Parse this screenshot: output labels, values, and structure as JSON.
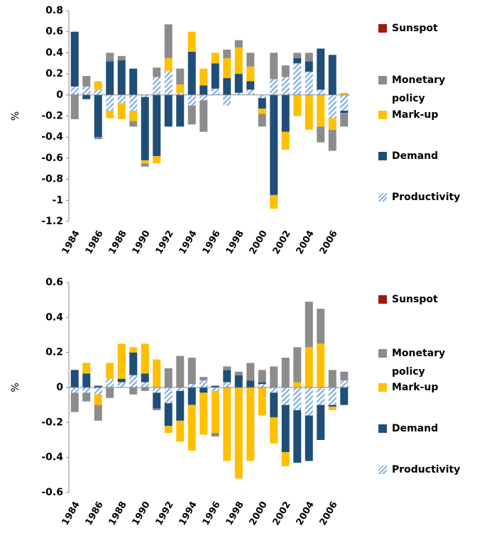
{
  "chart_data": [
    {
      "type": "bar",
      "stacked": true,
      "ylabel": "%",
      "legend": "right",
      "categories": [
        "1984",
        null,
        "1986",
        null,
        "1988",
        null,
        "1990",
        null,
        "1992",
        null,
        "1994",
        null,
        "1996",
        null,
        "1998",
        null,
        "2000",
        null,
        "2002",
        null,
        "2004",
        null,
        "2006",
        null
      ],
      "ylim": [
        -1.2,
        0.8
      ],
      "yticks": [
        0.8,
        0.6,
        0.4,
        0.2,
        0,
        -0.2,
        -0.4,
        -0.6,
        -0.8,
        -1,
        -1.2
      ],
      "series": [
        {
          "name": "Productivity",
          "color": "#8db4e2",
          "hatch": true,
          "values": [
            0.08,
            0.08,
            0.05,
            -0.15,
            -0.08,
            -0.15,
            -0.02,
            0.17,
            0.23,
            0.02,
            -0.1,
            -0.05,
            0.06,
            -0.1,
            0.02,
            0.05,
            -0.03,
            0.15,
            0.17,
            0.3,
            0.22,
            0.05,
            -0.22,
            -0.15
          ]
        },
        {
          "name": "Demand",
          "color": "#1f4e79",
          "values": [
            0.52,
            -0.04,
            -0.4,
            0.32,
            0.33,
            0.25,
            -0.6,
            -0.58,
            -0.3,
            -0.3,
            0.41,
            0.09,
            0.24,
            0.16,
            0.18,
            0.08,
            -0.1,
            -0.95,
            -0.35,
            0.05,
            0.1,
            0.39,
            0.38,
            -0.02
          ]
        },
        {
          "name": "Mark-up",
          "color": "#ffc000",
          "values": [
            0,
            0,
            0.08,
            -0.07,
            -0.15,
            -0.1,
            -0.03,
            -0.07,
            0.12,
            0.08,
            0.19,
            0.16,
            0.1,
            0.19,
            0.25,
            0.14,
            -0.05,
            -0.13,
            -0.17,
            -0.2,
            -0.33,
            -0.3,
            -0.11,
            0.02
          ]
        },
        {
          "name": "Monetary policy",
          "color": "#8c8c8c",
          "values": [
            -0.23,
            0.1,
            -0.02,
            0.08,
            0.04,
            -0.05,
            -0.03,
            0.09,
            0.32,
            0.15,
            -0.18,
            -0.3,
            0,
            0.08,
            0.07,
            0.13,
            -0.12,
            0.25,
            0.11,
            0.05,
            0.08,
            -0.15,
            -0.2,
            -0.13
          ]
        },
        {
          "name": "Sunspot",
          "color": "#9b1c0c",
          "values": [
            0,
            0,
            0,
            0,
            0,
            0,
            0,
            0,
            0,
            0,
            0,
            0,
            0,
            0,
            0,
            0,
            0,
            0,
            0,
            0,
            0,
            0,
            0,
            0
          ]
        }
      ]
    },
    {
      "type": "bar",
      "stacked": true,
      "ylabel": "%",
      "legend": "right",
      "categories": [
        "1984",
        null,
        "1986",
        null,
        "1988",
        null,
        "1990",
        null,
        "1992",
        null,
        "1994",
        null,
        "1996",
        null,
        "1998",
        null,
        "2000",
        null,
        "2002",
        null,
        "2004",
        null,
        "2006",
        null
      ],
      "ylim": [
        -0.6,
        0.6
      ],
      "yticks": [
        0.6,
        0.4,
        0.2,
        0,
        -0.2,
        -0.4,
        -0.6
      ],
      "series": [
        {
          "name": "Productivity",
          "color": "#8db4e2",
          "hatch": true,
          "values": [
            -0.03,
            -0.03,
            -0.04,
            0.05,
            0.03,
            0.07,
            0.03,
            -0.03,
            -0.09,
            -0.02,
            0.02,
            0.04,
            -0.02,
            0.03,
            0,
            0,
            0.02,
            -0.03,
            -0.1,
            -0.13,
            -0.16,
            -0.1,
            -0.1,
            0.04
          ]
        },
        {
          "name": "Demand",
          "color": "#1f4e79",
          "values": [
            0.1,
            0.08,
            0.01,
            0,
            0.02,
            0.13,
            0.05,
            -0.09,
            -0.13,
            -0.17,
            -0.1,
            -0.03,
            0.01,
            0.07,
            0.07,
            0.04,
            0.01,
            -0.14,
            -0.27,
            -0.3,
            -0.26,
            -0.2,
            -0.01,
            -0.1
          ]
        },
        {
          "name": "Mark-up",
          "color": "#ffc000",
          "values": [
            0,
            0.06,
            -0.06,
            0.09,
            0.2,
            0.03,
            0.17,
            0.16,
            -0.04,
            -0.12,
            -0.26,
            -0.24,
            -0.24,
            -0.42,
            -0.52,
            -0.42,
            -0.16,
            -0.15,
            -0.08,
            0.03,
            0.23,
            0.25,
            -0.02,
            0
          ]
        },
        {
          "name": "Monetary policy",
          "color": "#8c8c8c",
          "values": [
            -0.11,
            -0.05,
            -0.09,
            -0.06,
            0,
            -0.04,
            -0.02,
            -0.01,
            0.11,
            0.18,
            0.15,
            0.02,
            -0.02,
            0.02,
            0.02,
            0.1,
            0.07,
            0.12,
            0.17,
            0.2,
            0.26,
            0.2,
            0.1,
            0.05
          ]
        },
        {
          "name": "Sunspot",
          "color": "#9b1c0c",
          "values": [
            0,
            0,
            0,
            0,
            0,
            0,
            0,
            0,
            0,
            0,
            0,
            0,
            0,
            0,
            0,
            0,
            0,
            0,
            0,
            0,
            0,
            0,
            0,
            0
          ]
        }
      ]
    }
  ]
}
